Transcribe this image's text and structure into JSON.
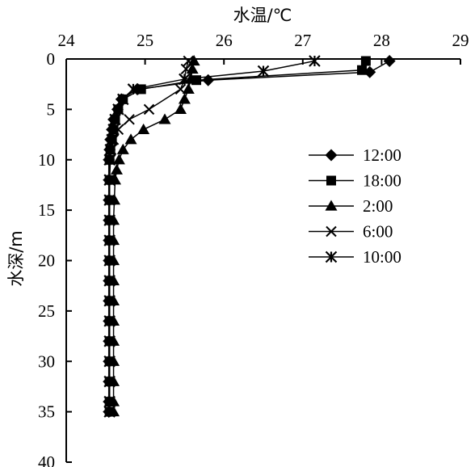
{
  "chart_data": {
    "type": "line",
    "xlabel": "水温/℃",
    "ylabel": "水深/m",
    "xlim": [
      24,
      29
    ],
    "ylim": [
      0,
      40
    ],
    "x_ticks": [
      24,
      25,
      26,
      27,
      28,
      29
    ],
    "y_ticks": [
      0,
      5,
      10,
      15,
      20,
      25,
      30,
      35,
      40
    ],
    "x_axis_position": "top",
    "y_inverted": true,
    "grid": false,
    "legend_position": "right-middle",
    "series": [
      {
        "name": "12:00",
        "marker": "diamond",
        "points": [
          [
            28.1,
            0.2
          ],
          [
            27.85,
            1.3
          ],
          [
            25.8,
            2.1
          ],
          [
            24.9,
            3.0
          ],
          [
            24.7,
            4.0
          ],
          [
            24.65,
            5.0
          ],
          [
            24.6,
            6.0
          ],
          [
            24.58,
            7.0
          ],
          [
            24.56,
            8.0
          ],
          [
            24.55,
            9.0
          ],
          [
            24.54,
            10.0
          ],
          [
            24.54,
            12.0
          ],
          [
            24.54,
            14.0
          ],
          [
            24.54,
            16.0
          ],
          [
            24.54,
            18.0
          ],
          [
            24.54,
            20.0
          ],
          [
            24.54,
            22.0
          ],
          [
            24.54,
            24.0
          ],
          [
            24.54,
            26.0
          ],
          [
            24.54,
            28.0
          ],
          [
            24.54,
            30.0
          ],
          [
            24.54,
            32.0
          ],
          [
            24.54,
            34.0
          ],
          [
            24.54,
            35.0
          ]
        ]
      },
      {
        "name": "18:00",
        "marker": "square",
        "points": [
          [
            27.8,
            0.2
          ],
          [
            27.75,
            1.1
          ],
          [
            25.65,
            2.1
          ],
          [
            24.95,
            3.0
          ],
          [
            24.72,
            4.0
          ],
          [
            24.66,
            5.0
          ],
          [
            24.62,
            6.0
          ],
          [
            24.6,
            7.0
          ],
          [
            24.58,
            8.0
          ],
          [
            24.56,
            9.0
          ],
          [
            24.55,
            10.0
          ],
          [
            24.55,
            12.0
          ],
          [
            24.55,
            14.0
          ],
          [
            24.55,
            16.0
          ],
          [
            24.55,
            18.0
          ],
          [
            24.55,
            20.0
          ],
          [
            24.55,
            22.0
          ],
          [
            24.55,
            24.0
          ],
          [
            24.55,
            26.0
          ],
          [
            24.55,
            28.0
          ],
          [
            24.55,
            30.0
          ],
          [
            24.55,
            32.0
          ],
          [
            24.55,
            34.0
          ],
          [
            24.55,
            35.0
          ]
        ]
      },
      {
        "name": "2:00",
        "marker": "triangle",
        "points": [
          [
            25.62,
            0.2
          ],
          [
            25.6,
            1.0
          ],
          [
            25.58,
            2.0
          ],
          [
            25.55,
            3.0
          ],
          [
            25.5,
            4.0
          ],
          [
            25.45,
            5.0
          ],
          [
            25.25,
            6.0
          ],
          [
            24.98,
            7.0
          ],
          [
            24.82,
            8.0
          ],
          [
            24.72,
            9.0
          ],
          [
            24.67,
            10.0
          ],
          [
            24.64,
            11.0
          ],
          [
            24.62,
            12.0
          ],
          [
            24.61,
            14.0
          ],
          [
            24.6,
            16.0
          ],
          [
            24.6,
            18.0
          ],
          [
            24.6,
            20.0
          ],
          [
            24.6,
            22.0
          ],
          [
            24.6,
            24.0
          ],
          [
            24.6,
            26.0
          ],
          [
            24.6,
            28.0
          ],
          [
            24.6,
            30.0
          ],
          [
            24.6,
            32.0
          ],
          [
            24.6,
            34.0
          ],
          [
            24.6,
            35.0
          ]
        ]
      },
      {
        "name": "6:00",
        "marker": "x",
        "points": [
          [
            25.55,
            0.2
          ],
          [
            25.52,
            1.0
          ],
          [
            25.5,
            2.0
          ],
          [
            25.45,
            3.0
          ],
          [
            25.05,
            5.0
          ],
          [
            24.8,
            6.0
          ],
          [
            24.66,
            7.0
          ],
          [
            24.6,
            8.0
          ],
          [
            24.57,
            9.0
          ],
          [
            24.56,
            10.0
          ],
          [
            24.55,
            12.0
          ],
          [
            24.55,
            14.0
          ],
          [
            24.55,
            16.0
          ],
          [
            24.55,
            18.0
          ],
          [
            24.55,
            20.0
          ],
          [
            24.55,
            22.0
          ],
          [
            24.55,
            24.0
          ],
          [
            24.55,
            26.0
          ],
          [
            24.55,
            28.0
          ],
          [
            24.55,
            30.0
          ],
          [
            24.55,
            32.0
          ],
          [
            24.55,
            34.0
          ],
          [
            24.55,
            35.0
          ]
        ]
      },
      {
        "name": "10:00",
        "marker": "asterisk",
        "points": [
          [
            27.15,
            0.2
          ],
          [
            26.5,
            1.2
          ],
          [
            25.5,
            2.0
          ],
          [
            24.85,
            3.0
          ],
          [
            24.72,
            4.0
          ],
          [
            24.66,
            5.0
          ],
          [
            24.62,
            6.0
          ],
          [
            24.6,
            7.0
          ],
          [
            24.58,
            8.0
          ],
          [
            24.56,
            9.0
          ],
          [
            24.55,
            10.0
          ],
          [
            24.55,
            12.0
          ],
          [
            24.55,
            14.0
          ],
          [
            24.55,
            16.0
          ],
          [
            24.55,
            18.0
          ],
          [
            24.55,
            20.0
          ],
          [
            24.55,
            22.0
          ],
          [
            24.55,
            24.0
          ],
          [
            24.55,
            26.0
          ],
          [
            24.55,
            28.0
          ],
          [
            24.55,
            30.0
          ],
          [
            24.55,
            32.0
          ],
          [
            24.55,
            34.0
          ],
          [
            24.55,
            35.0
          ]
        ]
      }
    ]
  }
}
